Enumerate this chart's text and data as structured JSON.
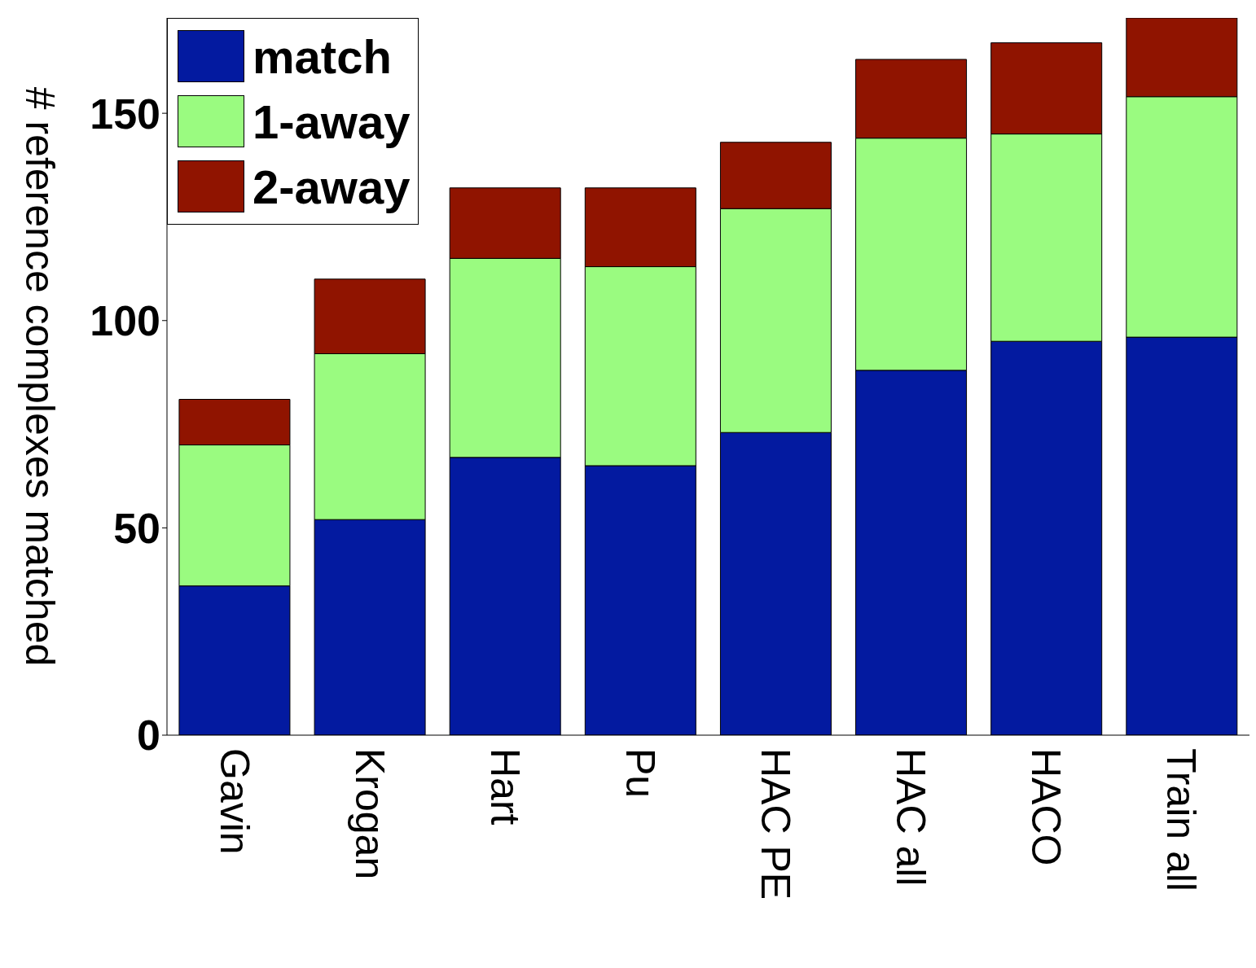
{
  "chart_data": {
    "type": "bar",
    "stacked": true,
    "ylabel": "# reference complexes matched",
    "categories": [
      "Gavin",
      "Krogan",
      "Hart",
      "Pu",
      "HAC PE",
      "HAC all",
      "HACO",
      "Train all"
    ],
    "series": [
      {
        "name": "match",
        "color": "#031aa0",
        "values": [
          36,
          52,
          67,
          65,
          73,
          88,
          95,
          96
        ]
      },
      {
        "name": "1-away",
        "color": "#9afb80",
        "values": [
          34,
          40,
          48,
          48,
          54,
          56,
          50,
          58
        ]
      },
      {
        "name": "2-away",
        "color": "#901400",
        "values": [
          11,
          18,
          17,
          19,
          16,
          19,
          22,
          19
        ]
      }
    ],
    "ylim": [
      0,
      173
    ],
    "yticks": [
      0,
      50,
      100,
      150
    ],
    "grid": false,
    "legend": "top left"
  }
}
